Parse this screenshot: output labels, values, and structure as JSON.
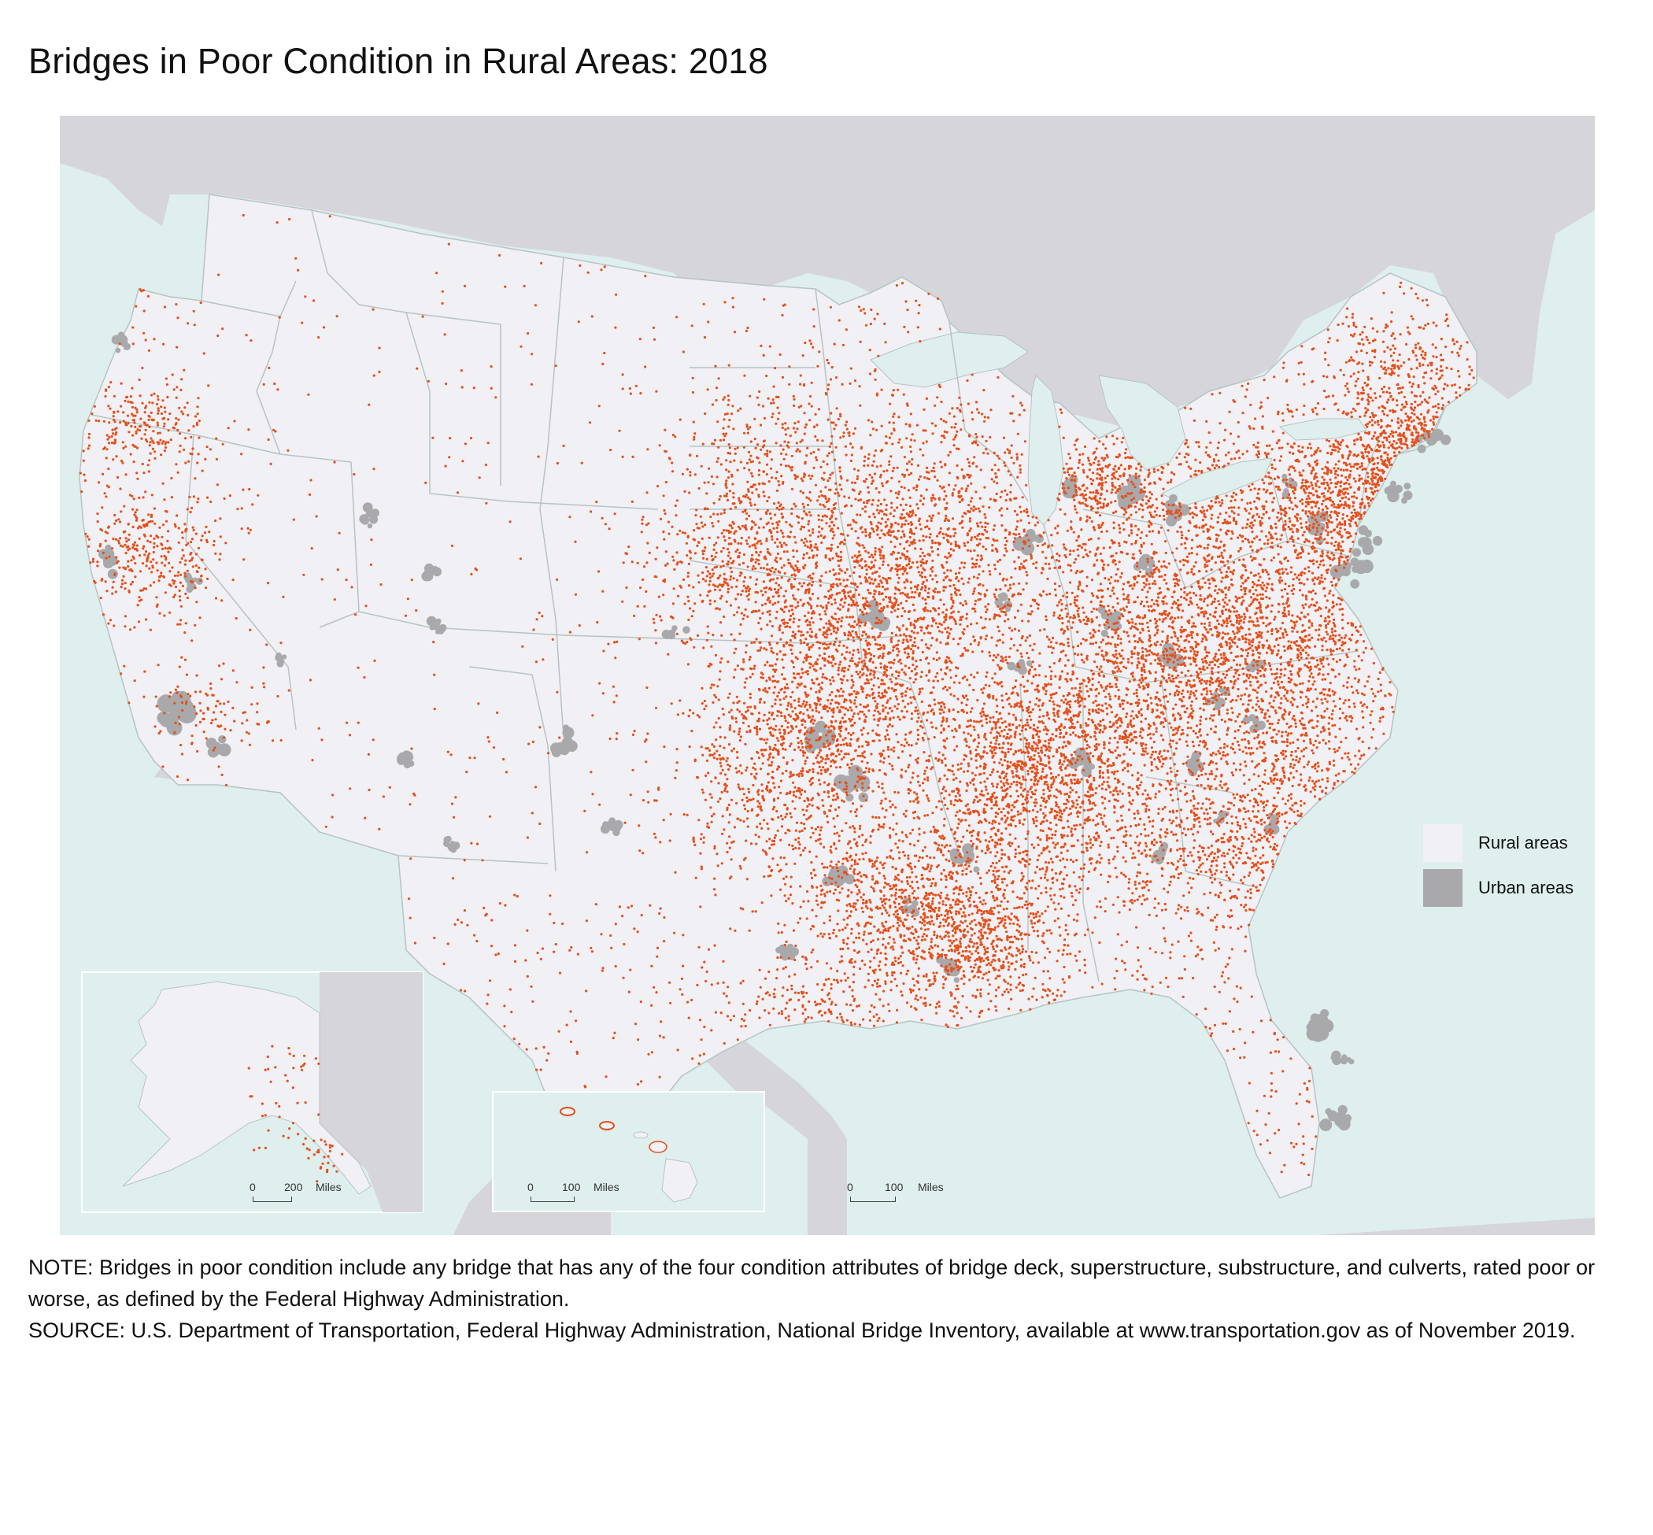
{
  "title": "Bridges in Poor Condition in Rural Areas: 2018",
  "colors": {
    "ocean": "#deefed",
    "land_other": "#d5d5da",
    "rural": "#f1f0f5",
    "urban": "#a9a9ab",
    "state_border": "#b6c4c2",
    "bridge_dot": "#e4501b"
  },
  "legend": {
    "items": [
      {
        "label": "Rural areas",
        "color": "#f1f0f5"
      },
      {
        "label": "Urban areas",
        "color": "#a9a9ab"
      }
    ]
  },
  "scale_bars": {
    "alaska": {
      "start": "0",
      "end": "200",
      "unit": "Miles"
    },
    "hawaii": {
      "start": "0",
      "end": "100",
      "unit": "Miles"
    },
    "main": {
      "start": "0",
      "end": "100",
      "unit": "Miles"
    }
  },
  "note": "NOTE: Bridges in poor condition include any bridge that has any of the four condition attributes of bridge deck, superstructure, substructure, and culverts, rated poor or worse, as defined by the Federal Highway Administration.",
  "source": "SOURCE: U.S. Department of Transportation, Federal Highway Administration, National Bridge Inventory, available at www.transportation.gov as of November 2019."
}
